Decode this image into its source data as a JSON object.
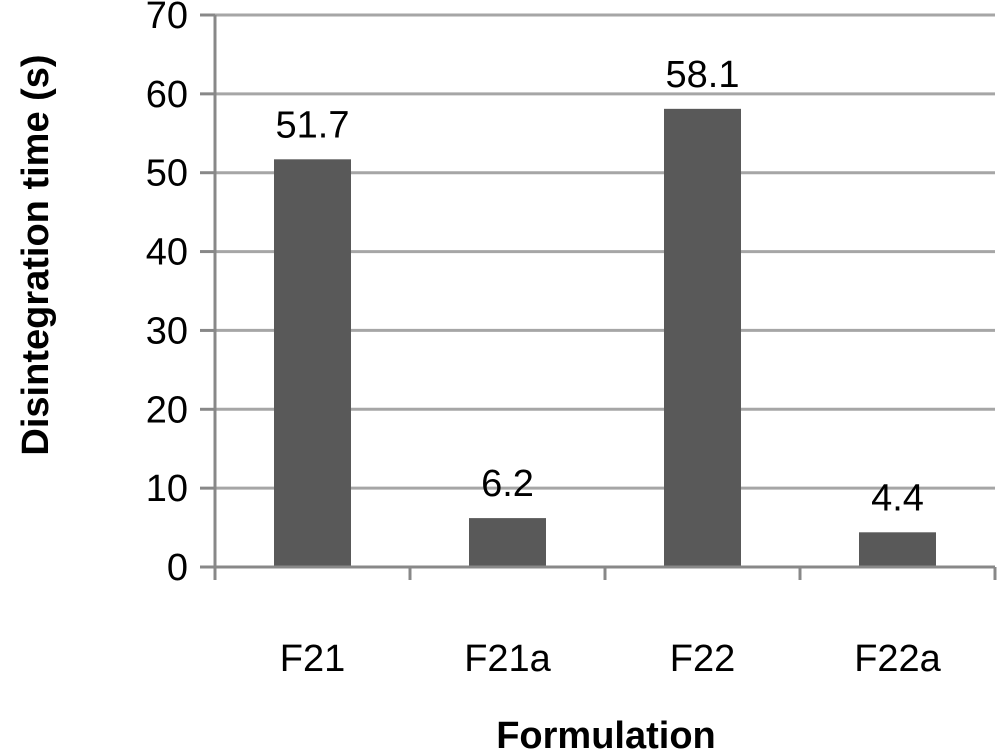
{
  "chart_data": {
    "type": "bar",
    "categories": [
      "F21",
      "F21a",
      "F22",
      "F22a"
    ],
    "values": [
      51.7,
      6.2,
      58.1,
      4.4
    ],
    "data_labels": [
      "51.7",
      "6.2",
      "58.1",
      "4.4"
    ],
    "title": "",
    "xlabel": "Formulation",
    "ylabel": "Disintegration time (s)",
    "ylim": [
      0,
      70
    ],
    "yticks": [
      0,
      10,
      20,
      30,
      40,
      50,
      60,
      70
    ],
    "grid": true,
    "legend": "none",
    "colors": {
      "bar": "#595959",
      "grid": "#a6a6a6",
      "axis": "#888888"
    }
  }
}
